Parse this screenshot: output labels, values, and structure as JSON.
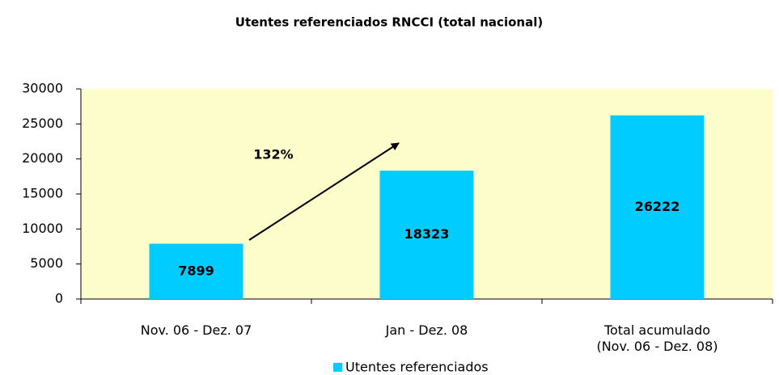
{
  "chart_data": {
    "type": "bar",
    "title": "Utentes referenciados  RNCCI (total nacional)",
    "categories": [
      "Nov. 06 - Dez. 07",
      "Jan - Dez. 08",
      "Total acumulado\n(Nov. 06 - Dez. 08)"
    ],
    "series": [
      {
        "name": "Utentes referenciados",
        "color": "#00ccff",
        "values": [
          7899,
          18323,
          26222
        ]
      }
    ],
    "ylim": [
      0,
      30000
    ],
    "yticks": [
      0,
      5000,
      10000,
      15000,
      20000,
      25000,
      30000
    ],
    "annotation": "132%",
    "plot_background": "#fdfccb"
  }
}
